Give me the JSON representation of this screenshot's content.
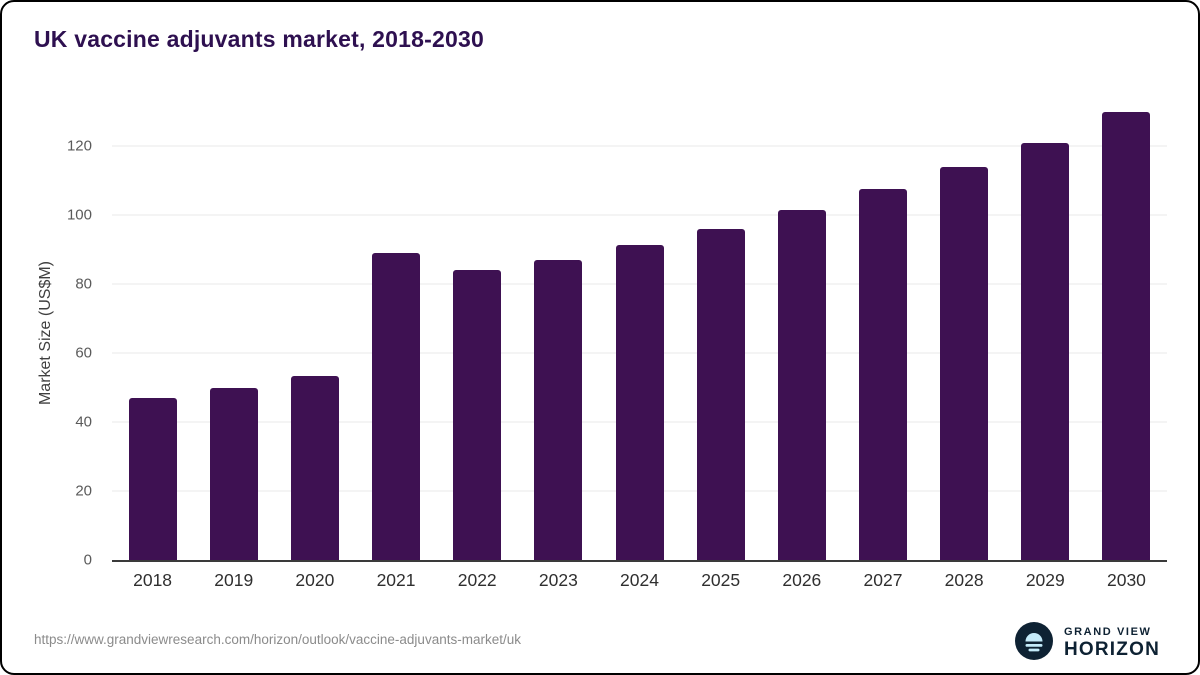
{
  "title": "UK vaccine adjuvants market, 2018-2030",
  "source_url": "https://www.grandviewresearch.com/horizon/outlook/vaccine-adjuvants-market/uk",
  "logo": {
    "line1": "GRAND VIEW",
    "line2": "HORIZON"
  },
  "colors": {
    "bar_color": "#3e1152",
    "title_color": "#2e1050",
    "grid_color": "#e8e8e8",
    "logo_navy": "#0e2233",
    "logo_blue": "#c4ebfa"
  },
  "chart_data": {
    "type": "bar",
    "title": "UK vaccine adjuvants market, 2018-2030",
    "categories": [
      "2018",
      "2019",
      "2020",
      "2021",
      "2022",
      "2023",
      "2024",
      "2025",
      "2026",
      "2027",
      "2028",
      "2029",
      "2030"
    ],
    "values": [
      47,
      50,
      53.5,
      89,
      84,
      87,
      91.5,
      96,
      101.5,
      107.5,
      114,
      121,
      130
    ],
    "xlabel": "",
    "ylabel": "Market Size (US$M)",
    "ylim": [
      0,
      132
    ],
    "yticks": [
      0,
      20,
      40,
      60,
      80,
      100,
      120
    ],
    "grid": true,
    "legend": false,
    "bar_color": "#3e1152"
  }
}
